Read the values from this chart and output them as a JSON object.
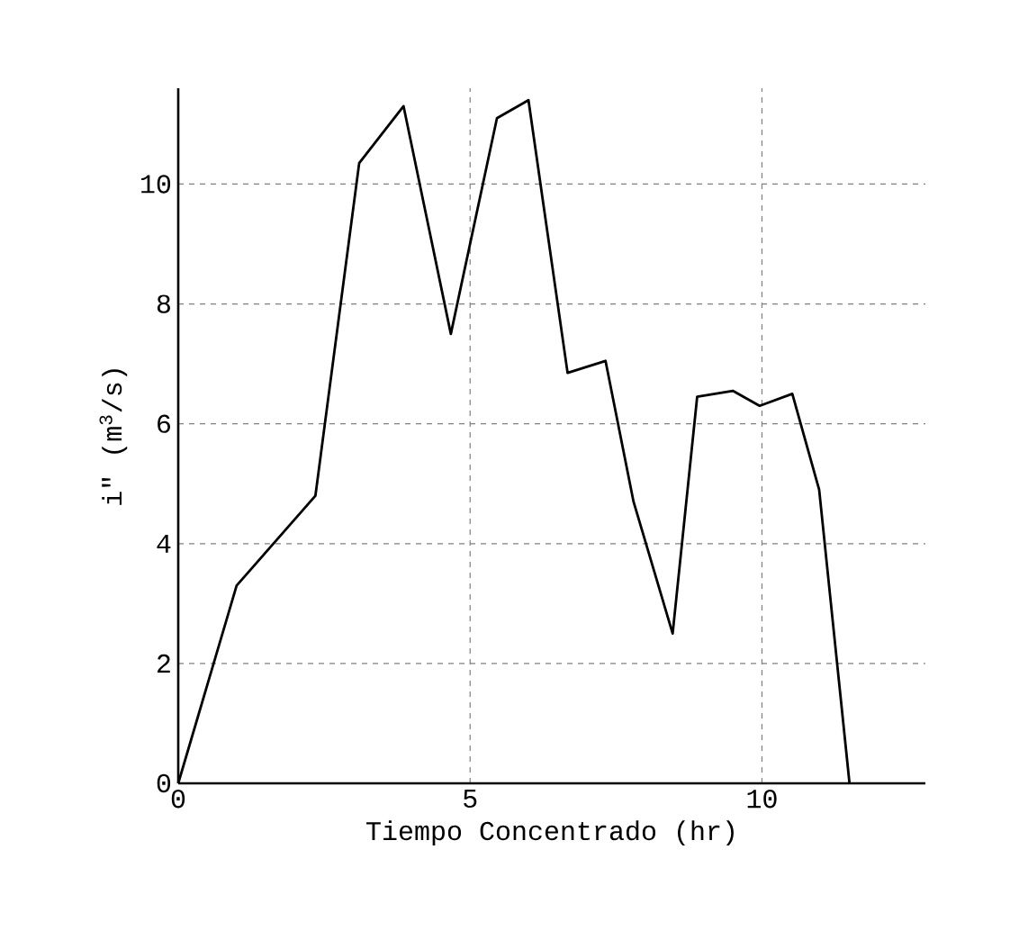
{
  "chart_data": {
    "type": "line",
    "xlabel": "Tiempo Concentrado (hr)",
    "ylabel": "i\" (m$^{3}$/s)",
    "x": [
      0,
      1.0,
      2.35,
      3.1,
      3.86,
      4.67,
      5.46,
      6.0,
      6.67,
      7.32,
      7.8,
      8.47,
      8.89,
      9.5,
      9.96,
      10.52,
      10.98,
      11.5
    ],
    "values": [
      0,
      3.3,
      4.8,
      10.35,
      11.3,
      7.5,
      11.1,
      11.4,
      6.85,
      7.05,
      4.7,
      2.5,
      6.45,
      6.55,
      6.3,
      6.5,
      4.9,
      0
    ],
    "color": "#000000",
    "xlim": [
      0,
      12.8
    ],
    "ylim": [
      0,
      11.6
    ],
    "xticks": [
      0,
      5,
      10
    ],
    "yticks": [
      0,
      2,
      4,
      6,
      8,
      10
    ],
    "grid": true,
    "line_style": "solid"
  }
}
